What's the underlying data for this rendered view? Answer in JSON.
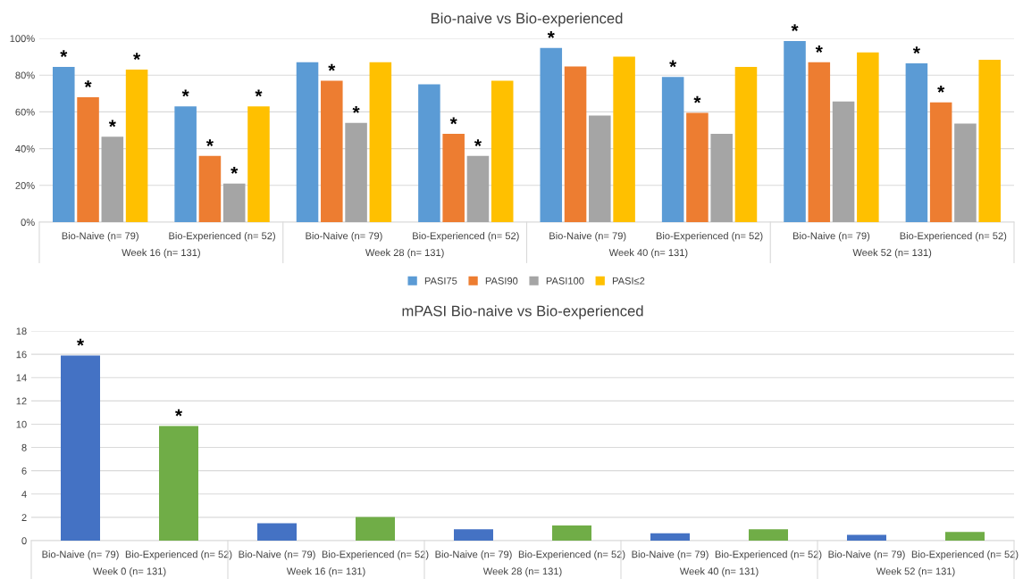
{
  "chart_data": [
    {
      "type": "bar",
      "title": "Bio-naive vs Bio-experienced",
      "categories": [
        "Bio-Naive (n= 79)",
        "Bio-Experienced (n= 52)",
        "Bio-Naive (n= 79)",
        "Bio-Experienced (n= 52)",
        "Bio-Naive (n= 79)",
        "Bio-Experienced (n= 52)",
        "Bio-Naive (n= 79)",
        "Bio-Experienced (n= 52)"
      ],
      "series": [
        {
          "name": "PASI75",
          "color": "#5b9bd5",
          "values": [
            84.5,
            63,
            87,
            75,
            94.8,
            79,
            98.6,
            86.4
          ],
          "value_labels": [
            "*",
            "*",
            null,
            null,
            "*",
            "*",
            "*",
            "*"
          ]
        },
        {
          "name": "PASI90",
          "color": "#ed7d31",
          "values": [
            68,
            36,
            77,
            48,
            84.7,
            59.5,
            87,
            65.2
          ],
          "value_labels": [
            "*",
            "*",
            "*",
            "*",
            null,
            "*",
            "*",
            "*"
          ]
        },
        {
          "name": "PASI100",
          "color": "#a5a5a5",
          "values": [
            46.5,
            21,
            54,
            36,
            58,
            48,
            65.6,
            53.7
          ],
          "value_labels": [
            "*",
            "*",
            "*",
            "*",
            null,
            null,
            null,
            null
          ]
        },
        {
          "name": "PASI≤2",
          "color": "#ffc000",
          "values": [
            83,
            63,
            87,
            77,
            90,
            84.5,
            92.3,
            88.4
          ],
          "value_labels": [
            "*",
            "*",
            null,
            null,
            null,
            null,
            null,
            null
          ]
        }
      ],
      "annotations": [
        "Week 16 (n= 131)",
        "Week 28 (n= 131)",
        "Week 40 (n= 131)",
        "Week 52 (n= 131)"
      ],
      "ylim": [
        0,
        100
      ],
      "yticks": [
        {
          "value": 0,
          "label": "0%"
        },
        {
          "value": 20,
          "label": "20%"
        },
        {
          "value": 40,
          "label": "40%"
        },
        {
          "value": 60,
          "label": "60%"
        },
        {
          "value": 80,
          "label": "80%"
        },
        {
          "value": 100,
          "label": "100%"
        }
      ],
      "grid": "y",
      "legend": "bottom"
    },
    {
      "type": "bar",
      "title": "mPASI Bio-naive vs Bio-experienced",
      "categories": [
        "Bio-Naive (n= 79)",
        "Bio-Experienced (n= 52)",
        "Bio-Naive (n= 79)",
        "Bio-Experienced (n= 52)",
        "Bio-Naive (n= 79)",
        "Bio-Experienced (n= 52)",
        "Bio-Naive (n= 79)",
        "Bio-Experienced (n= 52)",
        "Bio-Naive (n= 79)",
        "Bio-Experienced (n= 52)"
      ],
      "values": [
        15.9,
        9.85,
        1.5,
        2.03,
        0.97,
        1.3,
        0.63,
        0.98,
        0.49,
        0.74
      ],
      "colors": [
        "#4472c4",
        "#70ad47",
        "#4472c4",
        "#70ad47",
        "#4472c4",
        "#70ad47",
        "#4472c4",
        "#70ad47",
        "#4472c4",
        "#70ad47"
      ],
      "value_labels": [
        "*",
        "*",
        null,
        null,
        null,
        null,
        null,
        null,
        null,
        null
      ],
      "annotations": [
        "Week 0 (n= 131)",
        "Week 16 (n= 131)",
        "Week 28 (n= 131)",
        "Week 40 (n= 131)",
        "Week 52 (n= 131)"
      ],
      "ylim": [
        0,
        18
      ],
      "yticks": [
        0,
        2,
        4,
        6,
        8,
        10,
        12,
        14,
        16,
        18
      ],
      "grid": "y"
    }
  ]
}
